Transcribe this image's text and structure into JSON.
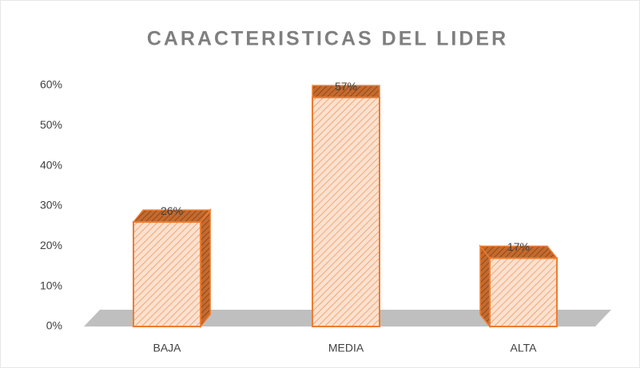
{
  "chart_data": {
    "type": "bar3d",
    "title": "CARACTERISTICAS DEL LIDER",
    "categories": [
      "BAJA",
      "MEDIA",
      "ALTA"
    ],
    "values": [
      26,
      57,
      17
    ],
    "value_labels": [
      "26%",
      "57%",
      "17%"
    ],
    "color": "#ed7d31",
    "ylim": [
      0,
      60
    ],
    "yticks": [
      {
        "value": 0,
        "label": "0%"
      },
      {
        "value": 10,
        "label": "10%"
      },
      {
        "value": 20,
        "label": "20%"
      },
      {
        "value": 30,
        "label": "30%"
      },
      {
        "value": 40,
        "label": "40%"
      },
      {
        "value": 50,
        "label": "50%"
      },
      {
        "value": 60,
        "label": "60%"
      }
    ]
  }
}
